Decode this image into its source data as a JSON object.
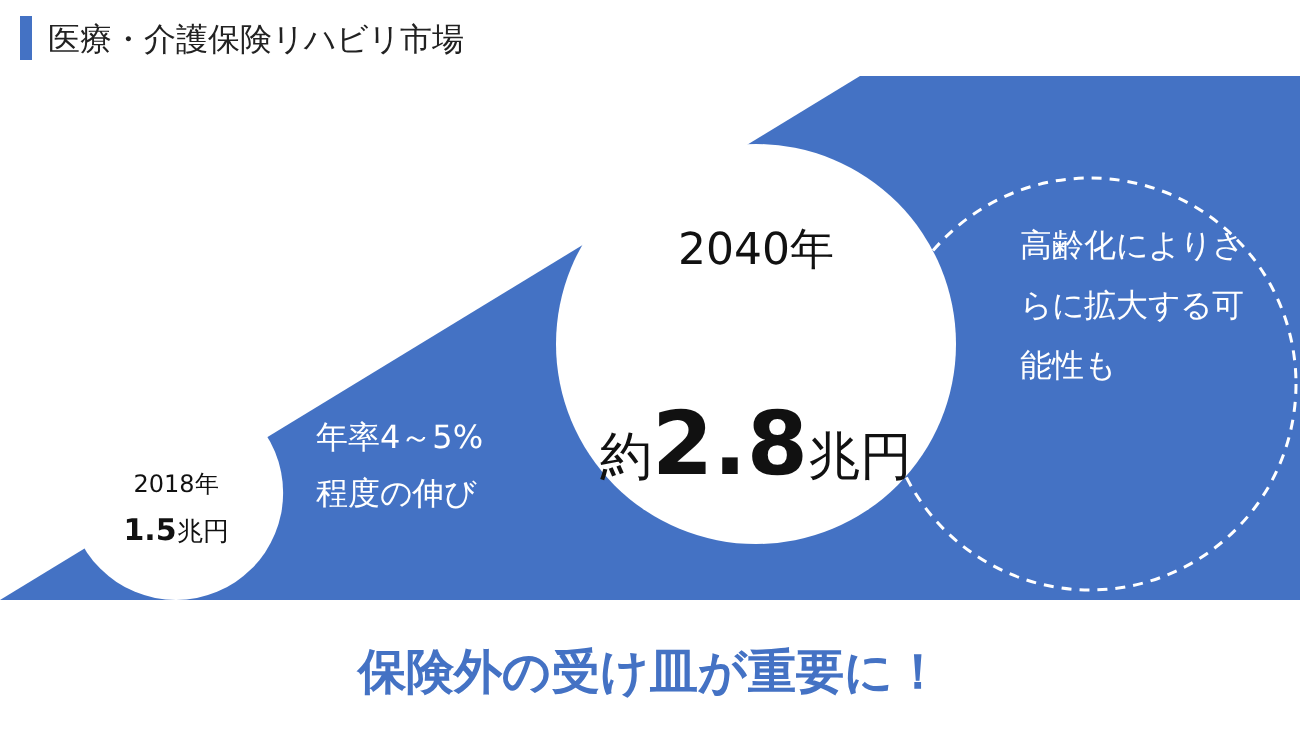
{
  "chart_data": {
    "type": "other",
    "title": "医療・介護保険リハビリ市場",
    "categories": [
      "2018年",
      "2040年"
    ],
    "values": [
      1.5,
      2.8
    ],
    "value_labels": [
      "1.5兆円",
      "約2.8兆円"
    ],
    "annotations": [
      "年率4～5%程度の伸び",
      "高齢化によりさらに拡大する可能性も",
      "保険外の受け皿が重要に！"
    ]
  }
}
